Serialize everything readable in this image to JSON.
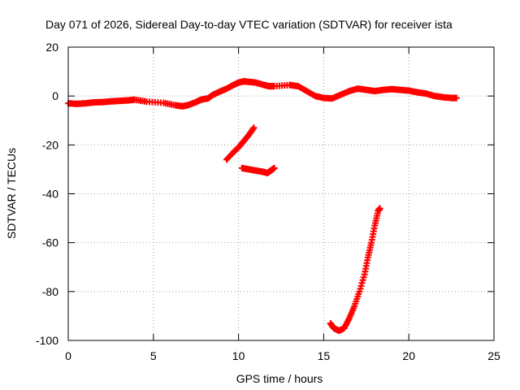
{
  "chart_data": {
    "type": "scatter",
    "title": "Day 071 of 2026, Sidereal Day-to-day VTEC variation (SDTVAR) for receiver ista",
    "xlabel": "GPS time / hours",
    "ylabel": "SDTVAR / TECUs",
    "xlim": [
      0,
      25
    ],
    "ylim": [
      -100,
      20
    ],
    "xticks": [
      0,
      5,
      10,
      15,
      20,
      25
    ],
    "yticks": [
      -100,
      -80,
      -60,
      -40,
      -20,
      0,
      20
    ],
    "grid": true,
    "marker": "plus",
    "color": "#ff0000",
    "series": [
      {
        "name": "main trace",
        "points": [
          [
            0.0,
            -3.0
          ],
          [
            0.5,
            -3.2
          ],
          [
            1.0,
            -3.0
          ],
          [
            1.5,
            -2.6
          ],
          [
            2.0,
            -2.5
          ],
          [
            2.5,
            -2.2
          ],
          [
            3.0,
            -2.0
          ],
          [
            3.5,
            -1.8
          ],
          [
            3.9,
            -1.5
          ],
          [
            4.6,
            -2.3
          ],
          [
            5.6,
            -2.8
          ],
          [
            6.3,
            -3.8
          ],
          [
            6.7,
            -4.2
          ],
          [
            7.0,
            -3.8
          ],
          [
            7.5,
            -2.5
          ],
          [
            7.8,
            -1.5
          ],
          [
            8.2,
            -1.0
          ],
          [
            8.5,
            0.5
          ],
          [
            8.9,
            1.8
          ],
          [
            9.3,
            3.0
          ],
          [
            9.7,
            4.5
          ],
          [
            10.0,
            5.5
          ],
          [
            10.3,
            6.0
          ],
          [
            10.6,
            5.8
          ],
          [
            11.0,
            5.5
          ],
          [
            11.5,
            4.5
          ],
          [
            11.8,
            4.0
          ],
          [
            12.1,
            4.0
          ],
          [
            13.0,
            4.5
          ],
          [
            13.5,
            4.0
          ],
          [
            14.0,
            2.0
          ],
          [
            14.5,
            0.0
          ],
          [
            15.0,
            -0.8
          ],
          [
            15.5,
            -1.0
          ],
          [
            16.0,
            0.5
          ],
          [
            16.5,
            2.0
          ],
          [
            17.0,
            3.0
          ],
          [
            17.5,
            2.5
          ],
          [
            18.0,
            2.0
          ],
          [
            18.5,
            2.5
          ],
          [
            19.0,
            2.8
          ],
          [
            19.5,
            2.5
          ],
          [
            20.0,
            2.2
          ],
          [
            20.5,
            1.5
          ],
          [
            21.0,
            1.0
          ],
          [
            21.5,
            0.0
          ],
          [
            22.0,
            -0.5
          ],
          [
            22.5,
            -0.8
          ],
          [
            22.8,
            -0.8
          ]
        ]
      },
      {
        "name": "segment a",
        "points": [
          [
            9.3,
            -26.0
          ],
          [
            9.7,
            -23.0
          ],
          [
            10.0,
            -21.0
          ],
          [
            10.3,
            -18.5
          ],
          [
            10.6,
            -16.0
          ],
          [
            10.9,
            -13.0
          ]
        ]
      },
      {
        "name": "segment b",
        "points": [
          [
            10.2,
            -29.5
          ],
          [
            10.6,
            -30.0
          ],
          [
            11.0,
            -30.5
          ],
          [
            11.4,
            -31.0
          ],
          [
            11.7,
            -31.5
          ],
          [
            11.9,
            -30.5
          ],
          [
            12.1,
            -29.5
          ]
        ]
      },
      {
        "name": "segment c",
        "points": [
          [
            15.4,
            -93.0
          ],
          [
            15.6,
            -95.0
          ],
          [
            15.9,
            -96.0
          ],
          [
            16.2,
            -95.0
          ],
          [
            16.5,
            -91.0
          ],
          [
            16.8,
            -86.0
          ],
          [
            17.1,
            -80.0
          ],
          [
            17.4,
            -73.0
          ],
          [
            17.6,
            -66.0
          ],
          [
            17.8,
            -60.0
          ],
          [
            18.0,
            -53.0
          ],
          [
            18.2,
            -47.0
          ],
          [
            18.3,
            -46.0
          ]
        ]
      }
    ]
  }
}
